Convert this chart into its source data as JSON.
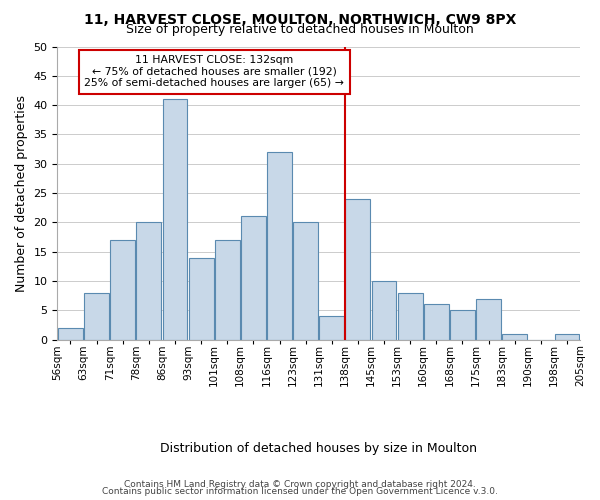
{
  "title": "11, HARVEST CLOSE, MOULTON, NORTHWICH, CW9 8PX",
  "subtitle": "Size of property relative to detached houses in Moulton",
  "xlabel": "Distribution of detached houses by size in Moulton",
  "ylabel": "Number of detached properties",
  "bins": [
    "56sqm",
    "63sqm",
    "71sqm",
    "78sqm",
    "86sqm",
    "93sqm",
    "101sqm",
    "108sqm",
    "116sqm",
    "123sqm",
    "131sqm",
    "138sqm",
    "145sqm",
    "153sqm",
    "160sqm",
    "168sqm",
    "175sqm",
    "183sqm",
    "190sqm",
    "198sqm",
    "205sqm"
  ],
  "values": [
    2,
    8,
    17,
    20,
    41,
    14,
    17,
    21,
    32,
    20,
    4,
    24,
    10,
    8,
    6,
    5,
    7,
    1,
    0,
    1
  ],
  "bar_color": "#c8d8e8",
  "bar_edge_color": "#5a8ab0",
  "vline_x": 10.5,
  "vline_color": "#cc0000",
  "annotation_title": "11 HARVEST CLOSE: 132sqm",
  "annotation_line1": "← 75% of detached houses are smaller (192)",
  "annotation_line2": "25% of semi-detached houses are larger (65) →",
  "annotation_box_edge": "#cc0000",
  "ylim": [
    0,
    50
  ],
  "yticks": [
    0,
    5,
    10,
    15,
    20,
    25,
    30,
    35,
    40,
    45,
    50
  ],
  "footer1": "Contains HM Land Registry data © Crown copyright and database right 2024.",
  "footer2": "Contains public sector information licensed under the Open Government Licence v.3.0."
}
